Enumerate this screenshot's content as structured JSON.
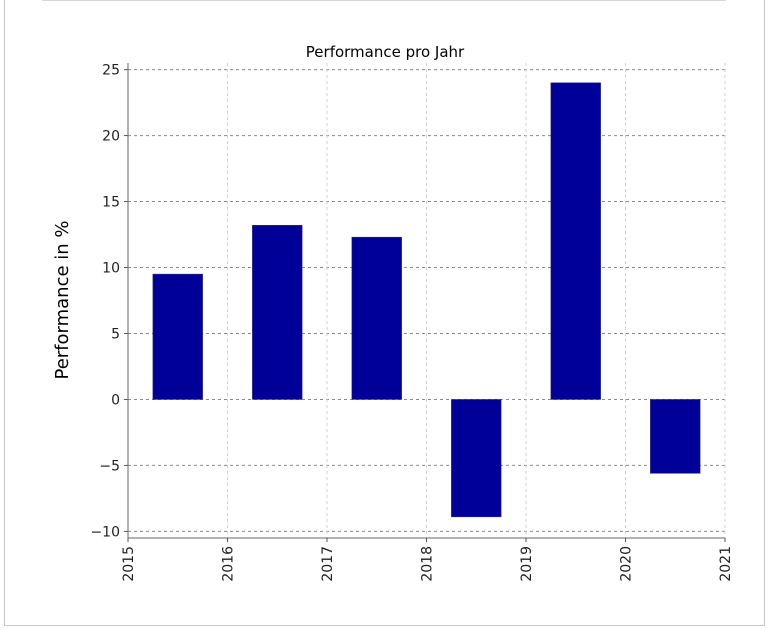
{
  "chart_data": {
    "type": "bar",
    "title": "Performance pro Jahr",
    "xlabel": "",
    "ylabel": "Performance in %",
    "x_ticks": [
      "2015",
      "2016",
      "2017",
      "2018",
      "2019",
      "2020",
      "2021"
    ],
    "categories": [
      "2015",
      "2016",
      "2017",
      "2018",
      "2019",
      "2020"
    ],
    "values": [
      9.5,
      13.2,
      12.3,
      -8.9,
      24.0,
      -5.6
    ],
    "ylim": [
      -10.5,
      25.5
    ],
    "y_ticks": [
      -10,
      -5,
      0,
      5,
      10,
      15,
      20,
      25
    ],
    "xlim": [
      2015,
      2021
    ],
    "grid": true,
    "bar_color": "#000099"
  }
}
